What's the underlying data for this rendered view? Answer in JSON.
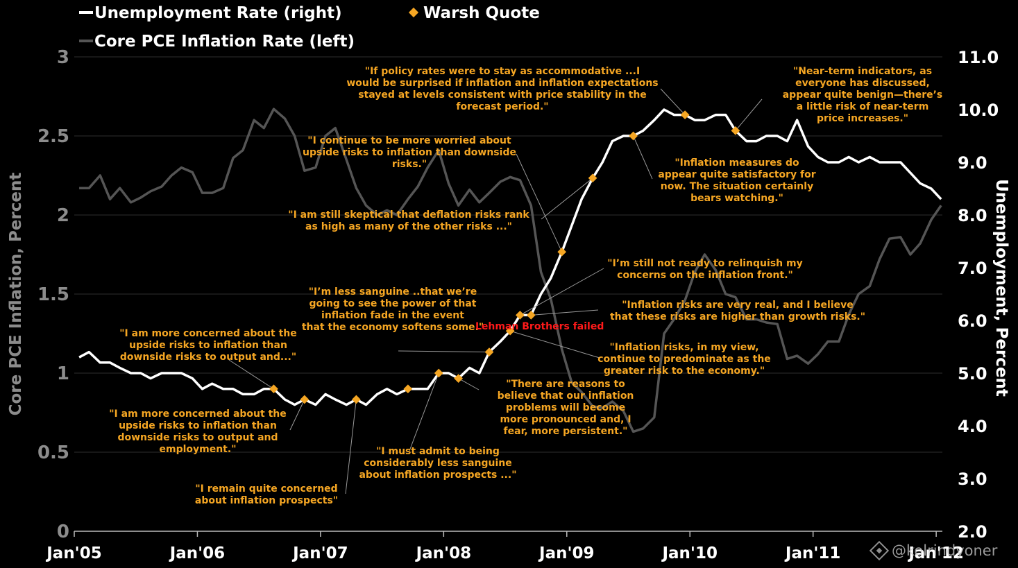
{
  "chart_data": {
    "type": "line",
    "legend": {
      "unemployment": "Unemployment Rate (right)",
      "warsh": "Warsh Quote",
      "pce": "Core PCE Inflation Rate (left)"
    },
    "ylabel_left": "Core PCE Inflation, Percent",
    "ylabel_right": "Unemployment, Percent",
    "ylim_left": [
      0,
      3
    ],
    "ylim_right": [
      2.0,
      11.0
    ],
    "yticks_left": [
      "0",
      "0.5",
      "1",
      "1.5",
      "2",
      "2.5",
      "3"
    ],
    "yticks_right": [
      "2.0",
      "3.0",
      "4.0",
      "5.0",
      "6.0",
      "7.0",
      "8.0",
      "9.0",
      "10.0",
      "11.0"
    ],
    "x_start": 2005.0,
    "x_end": 2012.05,
    "xticks": [
      "Jan'05",
      "Jan'06",
      "Jan'07",
      "Jan'08",
      "Jan'09",
      "Jan'10",
      "Jan'11",
      "Jan'12"
    ],
    "colors": {
      "unemployment": "#ffffff",
      "pce": "#555555",
      "warsh": "#f5a623",
      "event": "#ff1a1a",
      "grid": "#2e2e2e"
    },
    "series": [
      {
        "name": "Core PCE Inflation Rate (left)",
        "axis": "left",
        "x": [
          2005.04,
          2005.12,
          2005.21,
          2005.29,
          2005.37,
          2005.46,
          2005.54,
          2005.62,
          2005.71,
          2005.79,
          2005.87,
          2005.96,
          2006.04,
          2006.12,
          2006.21,
          2006.29,
          2006.37,
          2006.46,
          2006.54,
          2006.62,
          2006.71,
          2006.79,
          2006.87,
          2006.96,
          2007.04,
          2007.12,
          2007.21,
          2007.29,
          2007.37,
          2007.46,
          2007.54,
          2007.62,
          2007.71,
          2007.79,
          2007.87,
          2007.96,
          2008.04,
          2008.12,
          2008.21,
          2008.29,
          2008.37,
          2008.46,
          2008.54,
          2008.62,
          2008.71,
          2008.79,
          2008.87,
          2008.96,
          2009.04,
          2009.12,
          2009.21,
          2009.29,
          2009.37,
          2009.46,
          2009.54,
          2009.62,
          2009.71,
          2009.79,
          2009.87,
          2009.96,
          2010.04,
          2010.12,
          2010.21,
          2010.29,
          2010.37,
          2010.46,
          2010.54,
          2010.62,
          2010.71,
          2010.79,
          2010.87,
          2010.96,
          2011.04,
          2011.12,
          2011.21,
          2011.29,
          2011.37,
          2011.46,
          2011.54,
          2011.62,
          2011.71,
          2011.79,
          2011.87,
          2011.96,
          2012.04
        ],
        "values": [
          2.17,
          2.17,
          2.25,
          2.1,
          2.17,
          2.08,
          2.11,
          2.15,
          2.18,
          2.25,
          2.3,
          2.27,
          2.14,
          2.14,
          2.17,
          2.36,
          2.41,
          2.6,
          2.55,
          2.67,
          2.61,
          2.5,
          2.28,
          2.3,
          2.5,
          2.55,
          2.35,
          2.17,
          2.06,
          2.0,
          2.03,
          2.0,
          2.1,
          2.18,
          2.3,
          2.41,
          2.2,
          2.06,
          2.16,
          2.08,
          2.14,
          2.21,
          2.24,
          2.22,
          2.06,
          1.64,
          1.47,
          1.15,
          0.94,
          0.88,
          0.79,
          0.78,
          0.82,
          0.76,
          0.63,
          0.65,
          0.72,
          1.25,
          1.34,
          1.46,
          1.64,
          1.75,
          1.65,
          1.5,
          1.48,
          1.34,
          1.34,
          1.32,
          1.31,
          1.09,
          1.11,
          1.06,
          1.12,
          1.2,
          1.2,
          1.37,
          1.5,
          1.55,
          1.72,
          1.85,
          1.86,
          1.75,
          1.82,
          1.97,
          2.06
        ]
      },
      {
        "name": "Unemployment Rate (right)",
        "axis": "right",
        "x": [
          2005.04,
          2005.12,
          2005.21,
          2005.29,
          2005.37,
          2005.46,
          2005.54,
          2005.62,
          2005.71,
          2005.79,
          2005.87,
          2005.96,
          2006.04,
          2006.12,
          2006.21,
          2006.29,
          2006.37,
          2006.46,
          2006.54,
          2006.62,
          2006.71,
          2006.79,
          2006.87,
          2006.96,
          2007.04,
          2007.12,
          2007.21,
          2007.29,
          2007.37,
          2007.46,
          2007.54,
          2007.62,
          2007.71,
          2007.79,
          2007.87,
          2007.96,
          2008.04,
          2008.12,
          2008.21,
          2008.29,
          2008.37,
          2008.46,
          2008.54,
          2008.62,
          2008.71,
          2008.79,
          2008.87,
          2008.96,
          2009.04,
          2009.12,
          2009.21,
          2009.29,
          2009.37,
          2009.46,
          2009.54,
          2009.62,
          2009.71,
          2009.79,
          2009.87,
          2009.96,
          2010.04,
          2010.12,
          2010.21,
          2010.29,
          2010.37,
          2010.46,
          2010.54,
          2010.62,
          2010.71,
          2010.79,
          2010.87,
          2010.96,
          2011.04,
          2011.12,
          2011.21,
          2011.29,
          2011.37,
          2011.46,
          2011.54,
          2011.62,
          2011.71,
          2011.79,
          2011.87,
          2011.96,
          2012.04
        ],
        "values": [
          5.3,
          5.4,
          5.2,
          5.2,
          5.1,
          5.0,
          5.0,
          4.9,
          5.0,
          5.0,
          5.0,
          4.9,
          4.7,
          4.8,
          4.7,
          4.7,
          4.6,
          4.6,
          4.7,
          4.7,
          4.5,
          4.4,
          4.5,
          4.4,
          4.6,
          4.5,
          4.4,
          4.5,
          4.4,
          4.6,
          4.7,
          4.6,
          4.7,
          4.7,
          4.7,
          5.0,
          5.0,
          4.9,
          5.1,
          5.0,
          5.4,
          5.6,
          5.8,
          6.1,
          6.1,
          6.5,
          6.8,
          7.3,
          7.8,
          8.3,
          8.7,
          9.0,
          9.4,
          9.5,
          9.5,
          9.6,
          9.8,
          10.0,
          9.9,
          9.9,
          9.8,
          9.8,
          9.9,
          9.9,
          9.6,
          9.4,
          9.4,
          9.5,
          9.5,
          9.4,
          9.8,
          9.3,
          9.1,
          9.0,
          9.0,
          9.1,
          9.0,
          9.1,
          9.0,
          9.0,
          9.0,
          8.8,
          8.6,
          8.5,
          8.3
        ]
      }
    ],
    "warsh_points": [
      {
        "x": 2006.62,
        "y": 4.7
      },
      {
        "x": 2006.87,
        "y": 4.5
      },
      {
        "x": 2007.29,
        "y": 4.5
      },
      {
        "x": 2007.71,
        "y": 4.7
      },
      {
        "x": 2007.96,
        "y": 5.0
      },
      {
        "x": 2008.12,
        "y": 4.9
      },
      {
        "x": 2008.37,
        "y": 5.4
      },
      {
        "x": 2008.54,
        "y": 5.8
      },
      {
        "x": 2008.62,
        "y": 6.1
      },
      {
        "x": 2008.71,
        "y": 6.1
      },
      {
        "x": 2008.96,
        "y": 7.3
      },
      {
        "x": 2009.21,
        "y": 8.7
      },
      {
        "x": 2009.54,
        "y": 9.5
      },
      {
        "x": 2009.96,
        "y": 9.9
      },
      {
        "x": 2010.37,
        "y": 9.6
      }
    ],
    "quotes": [
      {
        "lines": [
          "\"If policy rates were to stay as accommodative ...I",
          "would be surprised if inflation and inflation expectations",
          "stayed at levels consistent with price stability in the",
          "forecast period.\""
        ]
      },
      {
        "lines": [
          "\"Near-term indicators, as",
          "everyone has discussed,",
          "appear quite benign—there’s",
          "a little risk of near-term",
          "price increases.\""
        ]
      },
      {
        "lines": [
          "\"I continue to be more worried about",
          "upside risks to inflation than downside",
          "risks.\""
        ]
      },
      {
        "lines": [
          "\"Inflation measures do",
          "appear quite satisfactory for",
          "now. The situation certainly",
          "bears watching.\""
        ]
      },
      {
        "lines": [
          "\"I am still skeptical that deflation risks rank",
          "as high as many of the other risks ...\""
        ]
      },
      {
        "lines": [
          "\"I’m still not ready to relinquish my",
          "concerns on the inflation front.\""
        ]
      },
      {
        "lines": [
          "\"I’m less sanguine ..that we’re",
          "going to see the power of that",
          "inflation fade in the event",
          "that the economy softens some.\""
        ]
      },
      {
        "lines": [
          "\"Inflation risks are very real, and I believe",
          "that these risks are higher than growth risks.\""
        ]
      },
      {
        "lines": [
          "\"I am more concerned about the",
          "upside risks to inflation than",
          "downside risks to output and...\""
        ]
      },
      {
        "lines": [
          "\"Inflation risks, in my view,",
          "continue to predominate as the",
          "greater risk to the economy.\""
        ]
      },
      {
        "lines": [
          "\"There are reasons to",
          "believe that our inflation",
          "problems will become",
          "more pronounced and, I",
          "fear, more persistent.\""
        ]
      },
      {
        "lines": [
          "\"I am more concerned about the",
          "upside risks to inflation than",
          "downside risks to output and",
          "employment.\""
        ]
      },
      {
        "lines": [
          "\"I must admit to being",
          "considerably less sanguine",
          "about inflation prospects ...\""
        ]
      },
      {
        "lines": [
          "\"I remain quite concerned",
          "about inflation prospects\""
        ]
      }
    ],
    "event_label": "Lehman Brothers failed",
    "watermark": "@kolrindyoner"
  }
}
